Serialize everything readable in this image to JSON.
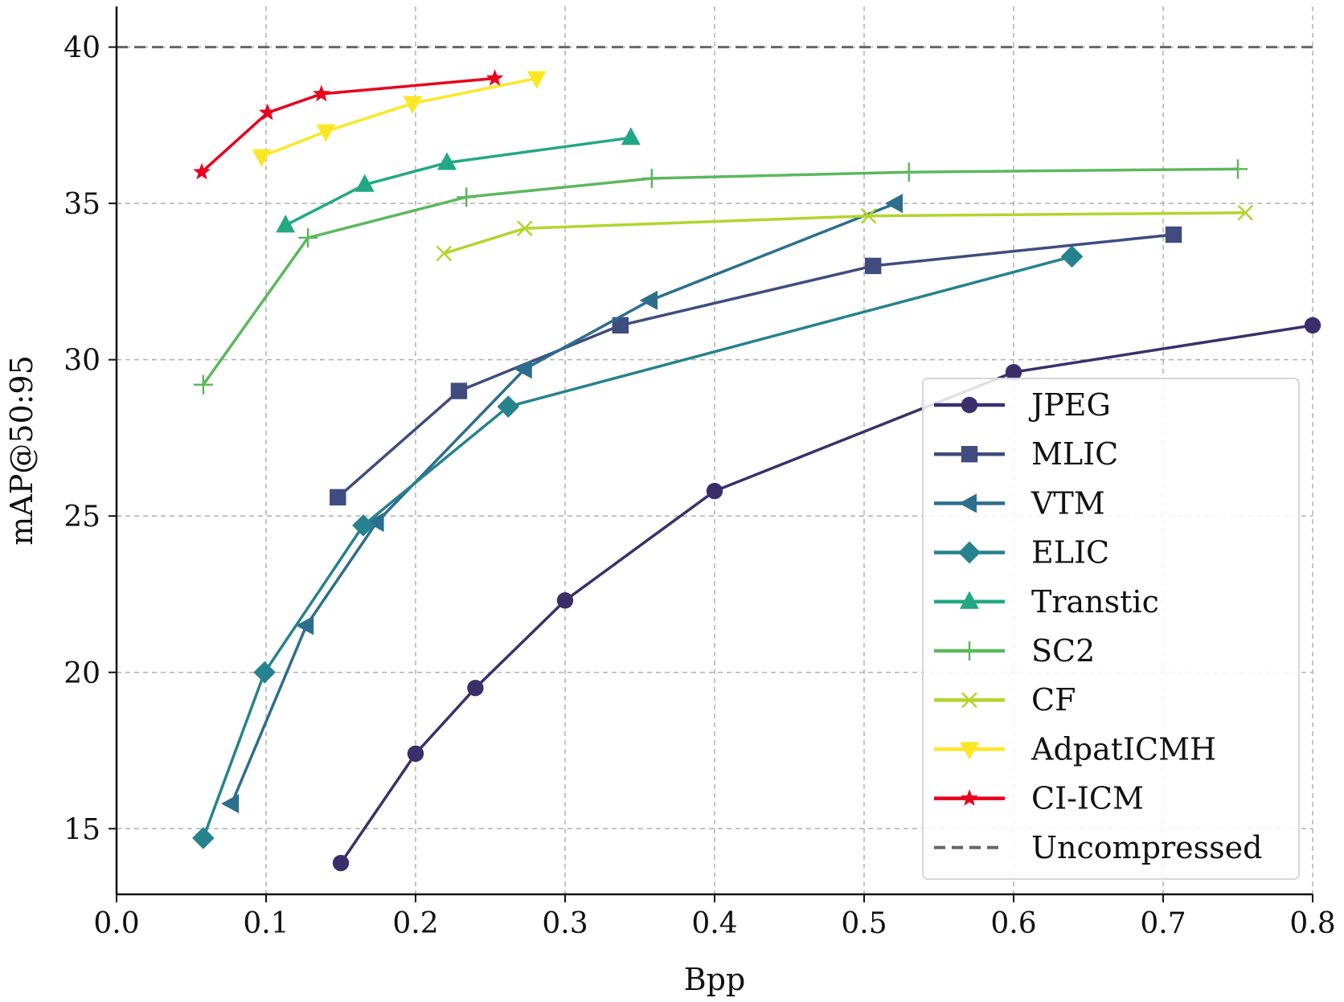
{
  "chart_data": {
    "type": "line",
    "title": "",
    "xlabel": "Bpp",
    "ylabel": "mAP@50:95",
    "xlim": [
      0.0,
      0.8
    ],
    "ylim": [
      12.9,
      41.3
    ],
    "xticks": [
      0.0,
      0.1,
      0.2,
      0.3,
      0.4,
      0.5,
      0.6,
      0.7,
      0.8
    ],
    "xtick_labels": [
      "0.0",
      "0.1",
      "0.2",
      "0.3",
      "0.4",
      "0.5",
      "0.6",
      "0.7",
      "0.8"
    ],
    "yticks": [
      15,
      20,
      25,
      30,
      35,
      40
    ],
    "ytick_labels": [
      "15",
      "20",
      "25",
      "30",
      "35",
      "40"
    ],
    "grid": true,
    "legend_position": "lower-right",
    "series": [
      {
        "name": "JPEG",
        "color": "#3b2f6b",
        "marker": "circle",
        "line": "solid",
        "x": [
          0.15,
          0.2,
          0.24,
          0.3,
          0.4,
          0.6,
          0.8
        ],
        "y": [
          13.9,
          17.4,
          19.5,
          22.3,
          25.8,
          29.6,
          31.1
        ]
      },
      {
        "name": "MLIC",
        "color": "#3f4c80",
        "marker": "square",
        "line": "solid",
        "x": [
          0.148,
          0.229,
          0.337,
          0.506,
          0.707
        ],
        "y": [
          25.6,
          29.0,
          31.1,
          33.0,
          34.0
        ]
      },
      {
        "name": "VTM",
        "color": "#2d6e8e",
        "marker": "triangle-left",
        "line": "solid",
        "x": [
          0.077,
          0.127,
          0.174,
          0.273,
          0.357,
          0.521
        ],
        "y": [
          15.8,
          21.5,
          24.8,
          29.7,
          31.9,
          35.0
        ]
      },
      {
        "name": "ELIC",
        "color": "#26828e",
        "marker": "diamond",
        "line": "solid",
        "x": [
          0.058,
          0.099,
          0.165,
          0.262,
          0.639
        ],
        "y": [
          14.7,
          20.0,
          24.7,
          28.5,
          33.3
        ]
      },
      {
        "name": "Transtic",
        "color": "#22a884",
        "marker": "triangle-up",
        "line": "solid",
        "x": [
          0.113,
          0.166,
          0.221,
          0.344
        ],
        "y": [
          34.3,
          35.6,
          36.3,
          37.1
        ]
      },
      {
        "name": "SC2",
        "color": "#5cb85c",
        "marker": "plus",
        "line": "solid",
        "x": [
          0.058,
          0.128,
          0.234,
          0.358,
          0.53,
          0.75
        ],
        "y": [
          29.2,
          33.9,
          35.2,
          35.8,
          36.0,
          36.1
        ]
      },
      {
        "name": "CF",
        "color": "#b2d52c",
        "marker": "x",
        "line": "solid",
        "x": [
          0.219,
          0.273,
          0.503,
          0.755
        ],
        "y": [
          33.4,
          34.2,
          34.6,
          34.7
        ]
      },
      {
        "name": "AdpatICMH",
        "color": "#fde725",
        "marker": "triangle-down",
        "line": "solid",
        "x": [
          0.097,
          0.14,
          0.198,
          0.281
        ],
        "y": [
          36.5,
          37.3,
          38.2,
          39.0
        ]
      },
      {
        "name": "CI-ICM",
        "color": "#e8001c",
        "marker": "star",
        "line": "solid",
        "x": [
          0.057,
          0.101,
          0.137,
          0.253
        ],
        "y": [
          36.0,
          37.9,
          38.5,
          39.0
        ]
      },
      {
        "name": "Uncompressed",
        "color": "#666666",
        "marker": "none",
        "line": "dashed",
        "x": [
          0.0,
          0.8
        ],
        "y": [
          40.0,
          40.0
        ]
      }
    ]
  }
}
